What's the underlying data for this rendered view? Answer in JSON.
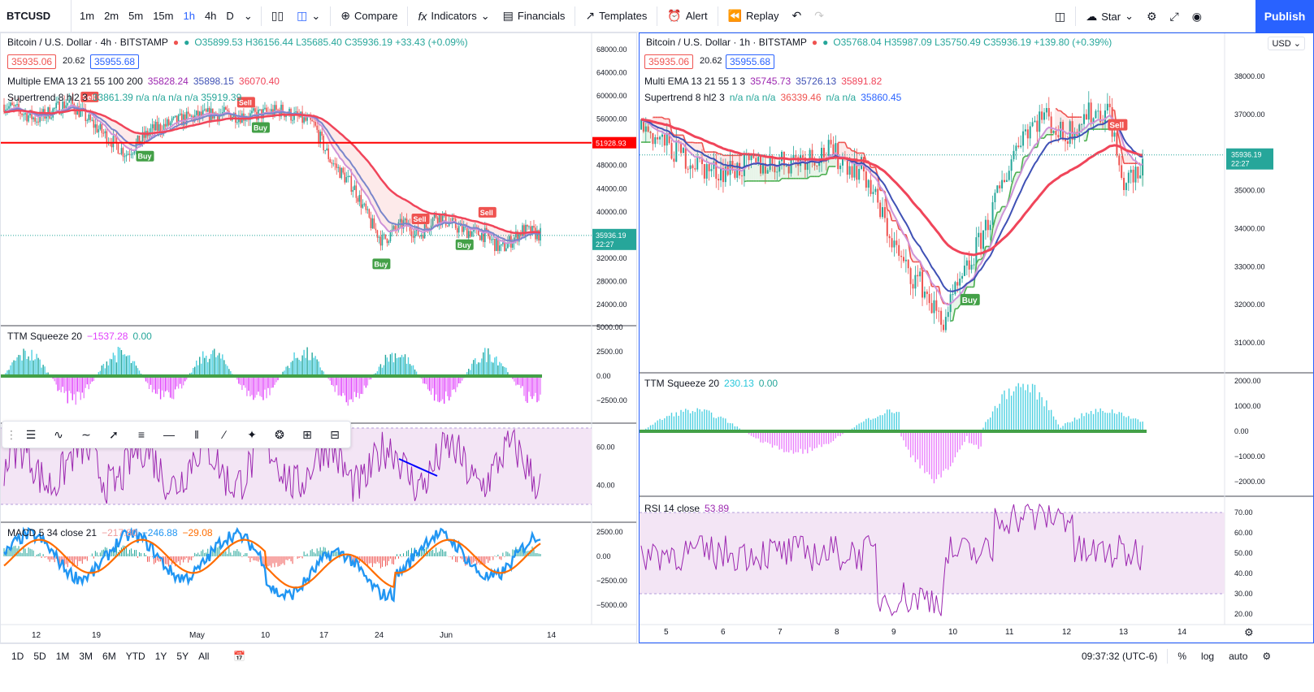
{
  "toolbar": {
    "symbol": "BTCUSD",
    "intervals": [
      "1m",
      "2m",
      "5m",
      "15m",
      "1h",
      "4h",
      "D"
    ],
    "active_interval": "1h",
    "compare_label": "Compare",
    "indicators_label": "Indicators",
    "financials_label": "Financials",
    "templates_label": "Templates",
    "alert_label": "Alert",
    "replay_label": "Replay",
    "star_label": "Star",
    "publish_label": "Publish"
  },
  "left_chart": {
    "title": "Bitcoin / U.S. Dollar · 4h · BITSTAMP",
    "ohlc": "O35899.53 H36156.44 L35685.40 C35936.19 +33.43 (+0.09%)",
    "bid": "35935.06",
    "spread": "20.62",
    "ask": "35955.68",
    "ema_label": "Multiple EMA 13 21 55 100 200",
    "ema_values": [
      "35828.24",
      "35898.15",
      "36070.40"
    ],
    "supertrend_label": "Supertrend 8 hl2 3",
    "supertrend_values": "33861.39 n/a n/a n/a n/a 35919.39",
    "hline_price": "51928.93",
    "last_price": "35936.19",
    "countdown": "22:27",
    "price_ticks": [
      "68000.00",
      "64000.00",
      "60000.00",
      "56000.00",
      "52000.00",
      "48000.00",
      "44000.00",
      "40000.00",
      "36000.00",
      "32000.00",
      "28000.00",
      "24000.00"
    ],
    "ttm_label": "TTM Squeeze 20",
    "ttm_value1": "−1537.28",
    "ttm_value2": "0.00",
    "ttm_ticks": [
      "5000.00",
      "2500.00",
      "0.00",
      "−2500.00"
    ],
    "rsi_ticks": [
      "60.00",
      "40.00"
    ],
    "macd_label": "MACD 5 34 close 21",
    "macd_values": [
      "−217.80",
      "−246.88",
      "−29.08"
    ],
    "macd_ticks": [
      "2500.00",
      "0.00",
      "−2500.00",
      "−5000.00"
    ],
    "time_ticks": [
      "12",
      "19",
      "May",
      "10",
      "17",
      "24",
      "Jun",
      "14"
    ],
    "signals": [
      "Sell",
      "Buy",
      "Sell",
      "Buy",
      "Buy",
      "Sell",
      "Buy",
      "Sell"
    ]
  },
  "right_chart": {
    "title": "Bitcoin / U.S. Dollar · 1h · BITSTAMP",
    "ohlc": "O35768.04 H35987.09 L35750.49 C35936.19 +139.80 (+0.39%)",
    "bid": "35935.06",
    "spread": "20.62",
    "ask": "35955.68",
    "ema_label": "Multi EMA 13 21 55 1 3",
    "ema_values": [
      "35745.73",
      "35726.13",
      "35891.82"
    ],
    "supertrend_label": "Supertrend 8 hl2 3",
    "supertrend_values": "n/a n/a n/a",
    "supertrend_value2": "36339.46",
    "supertrend_values3": "n/a n/a",
    "supertrend_value4": "35860.45",
    "currency": "USD",
    "last_price": "35936.19",
    "countdown": "22:27",
    "price_ticks": [
      "38000.00",
      "37000.00",
      "36000.00",
      "35000.00",
      "34000.00",
      "33000.00",
      "32000.00",
      "31000.00"
    ],
    "ttm_label": "TTM Squeeze 20",
    "ttm_value1": "230.13",
    "ttm_value2": "0.00",
    "ttm_ticks": [
      "2000.00",
      "1000.00",
      "0.00",
      "−1000.00",
      "−2000.00"
    ],
    "rsi_label": "RSI 14 close",
    "rsi_value": "53.89",
    "rsi_ticks": [
      "70.00",
      "60.00",
      "50.00",
      "40.00",
      "30.00",
      "20.00"
    ],
    "time_ticks": [
      "5",
      "6",
      "7",
      "8",
      "9",
      "10",
      "11",
      "12",
      "13",
      "14"
    ],
    "signals": [
      "Sell",
      "Buy"
    ]
  },
  "bottombar": {
    "ranges": [
      "1D",
      "5D",
      "1M",
      "3M",
      "6M",
      "YTD",
      "1Y",
      "5Y",
      "All"
    ],
    "time": "09:37:32 (UTC-6)",
    "percent_label": "%",
    "log_label": "log",
    "auto_label": "auto"
  },
  "colors": {
    "accent": "#2962ff",
    "up": "#26a69a",
    "down": "#ef5350",
    "ema_fast": "#9c27b0",
    "ema_mid": "#3f51b5",
    "ema_slow": "#f0455a",
    "hline": "#ff0000",
    "rsi_fill": "#f3e5f5"
  }
}
